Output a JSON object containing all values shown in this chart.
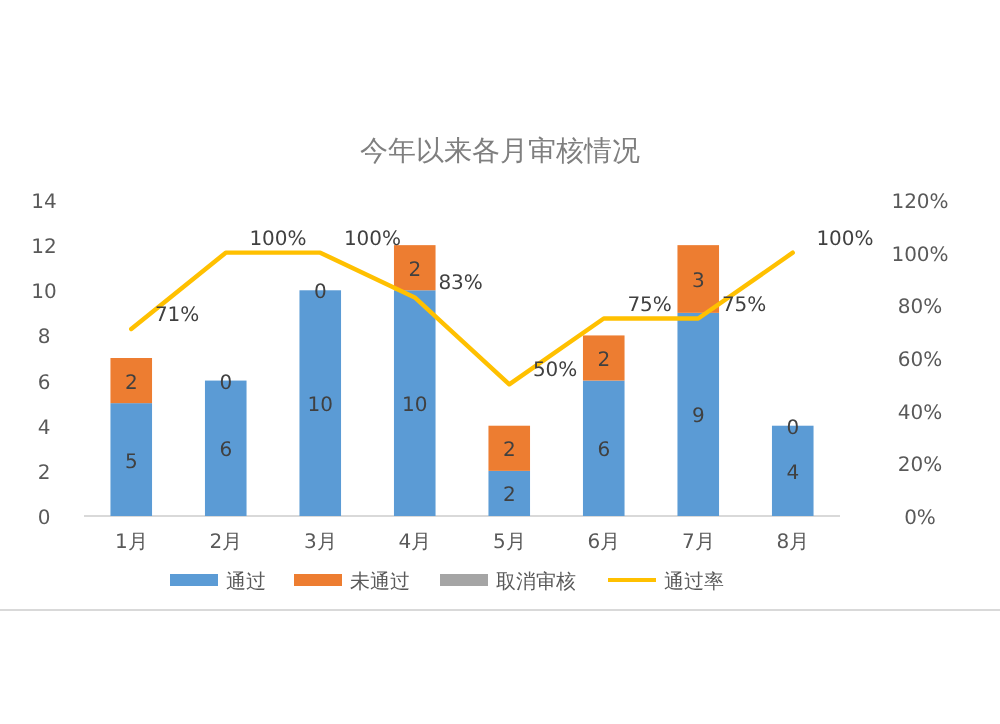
{
  "chart_data": {
    "type": "bar",
    "title": "今年以来各月审核情况",
    "stacked": true,
    "categories": [
      "1月",
      "2月",
      "3月",
      "4月",
      "5月",
      "6月",
      "7月",
      "8月"
    ],
    "series": [
      {
        "name": "通过",
        "color": "#5b9bd5",
        "values": [
          5,
          6,
          10,
          10,
          2,
          6,
          9,
          4
        ],
        "value_labels": [
          "5",
          "6",
          "10",
          "10",
          "2",
          "6",
          "9",
          "4"
        ]
      },
      {
        "name": "未通过",
        "color": "#ed7d31",
        "values": [
          2,
          0,
          0,
          2,
          2,
          2,
          3,
          0
        ],
        "value_labels": [
          "2",
          "0",
          "0",
          "2",
          "2",
          "2",
          "3",
          "0"
        ]
      },
      {
        "name": "取消审核",
        "color": "#a5a5a5",
        "values": [
          0,
          0,
          0,
          0,
          0,
          0,
          0,
          0
        ]
      },
      {
        "name": "通过率",
        "type": "line",
        "axis": "y2",
        "color": "#ffc000",
        "values": [
          71,
          100,
          100,
          83,
          50,
          75,
          75,
          100
        ],
        "value_labels": [
          "71%",
          "100%",
          "100%",
          "83%",
          "50%",
          "75%",
          "75%",
          "100%"
        ]
      }
    ],
    "ylim": [
      0,
      14
    ],
    "yticks": [
      0,
      2,
      4,
      6,
      8,
      10,
      12,
      14
    ],
    "y2lim": [
      0,
      120
    ],
    "y2ticks": [
      {
        "value": 0,
        "label": "0%"
      },
      {
        "value": 20,
        "label": "20%"
      },
      {
        "value": 40,
        "label": "40%"
      },
      {
        "value": 60,
        "label": "60%"
      },
      {
        "value": 80,
        "label": "80%"
      },
      {
        "value": 100,
        "label": "100%"
      },
      {
        "value": 120,
        "label": "120%"
      }
    ],
    "grid": false,
    "legend": "bottom",
    "marker": "none",
    "line_style": "solid"
  }
}
